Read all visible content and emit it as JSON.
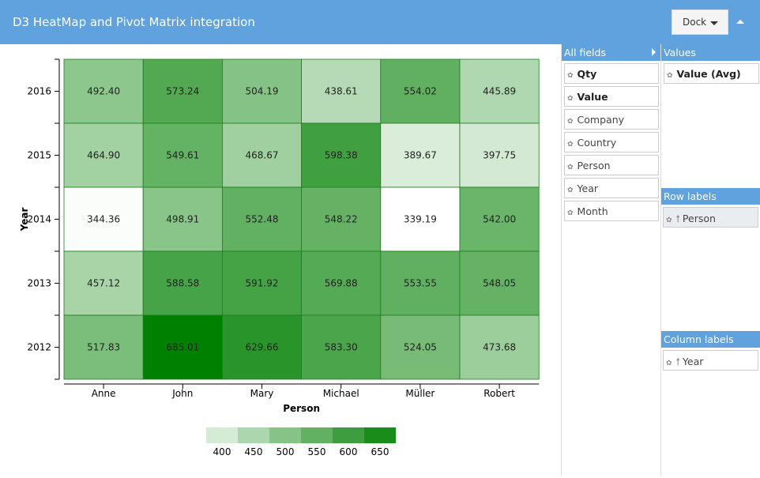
{
  "header": {
    "title": "D3 HeatMap and Pivot Matrix integration",
    "dock_label": "Dock"
  },
  "pivot": {
    "all_fields_label": "All fields",
    "all_fields": [
      {
        "label": "Qty",
        "bold": true
      },
      {
        "label": "Value",
        "bold": true
      },
      {
        "label": "Company"
      },
      {
        "label": "Country"
      },
      {
        "label": "Person"
      },
      {
        "label": "Year"
      },
      {
        "label": "Month"
      }
    ],
    "values_label": "Values",
    "values": [
      "Value (Avg)"
    ],
    "row_labels_label": "Row labels",
    "row_labels": [
      "Person"
    ],
    "column_labels_label": "Column labels",
    "column_labels": [
      "Year"
    ]
  },
  "chart_data": {
    "type": "heatmap",
    "xlabel": "Person",
    "ylabel": "Year",
    "x": [
      "Anne",
      "John",
      "Mary",
      "Michael",
      "Müller",
      "Robert"
    ],
    "y": [
      "2016",
      "2015",
      "2014",
      "2013",
      "2012"
    ],
    "values": [
      [
        492.4,
        573.24,
        504.19,
        438.61,
        554.02,
        445.89
      ],
      [
        464.9,
        549.61,
        468.67,
        598.38,
        389.67,
        397.75
      ],
      [
        344.36,
        498.91,
        552.48,
        548.22,
        339.19,
        542.0
      ],
      [
        457.12,
        588.58,
        591.92,
        569.88,
        553.55,
        548.05
      ],
      [
        517.83,
        685.01,
        629.66,
        583.3,
        524.05,
        473.68
      ]
    ],
    "color_low": "#ffffff",
    "color_high": "#008000",
    "legend": {
      "ticks": [
        "400",
        "450",
        "500",
        "550",
        "600",
        "650"
      ],
      "colors": [
        "#d4ebd4",
        "#acd6ac",
        "#86c386",
        "#62b062",
        "#3e9d3e",
        "#1a8c1a"
      ],
      "placement": "bottom"
    }
  }
}
